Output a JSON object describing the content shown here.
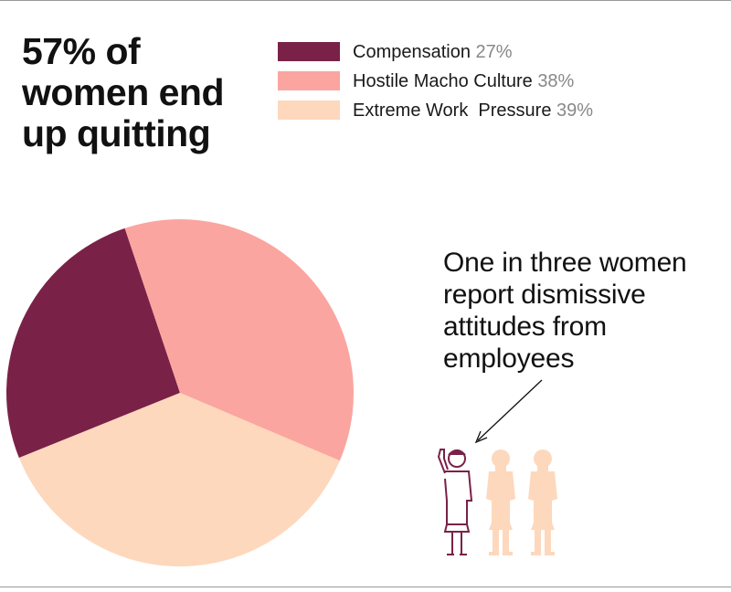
{
  "headline": "57% of women end up quitting",
  "callout": "One in three women report dismissive attitudes from employees",
  "colors": {
    "compensation": "#7a2148",
    "hostile": "#fba5a0",
    "extreme": "#fdd8bc",
    "people_highlight": "#7a2148",
    "people_muted": "#fdd8bc"
  },
  "icons": [
    "woman-raised-hand-icon",
    "woman-icon"
  ],
  "chart_data": {
    "type": "pie",
    "labels": [
      "Compensation",
      "Hostile Macho Culture",
      "Extreme Work  Pressure"
    ],
    "values": [
      27,
      38,
      39
    ],
    "value_labels": [
      "27%",
      "38%",
      "39%"
    ],
    "legend": "top-right"
  }
}
